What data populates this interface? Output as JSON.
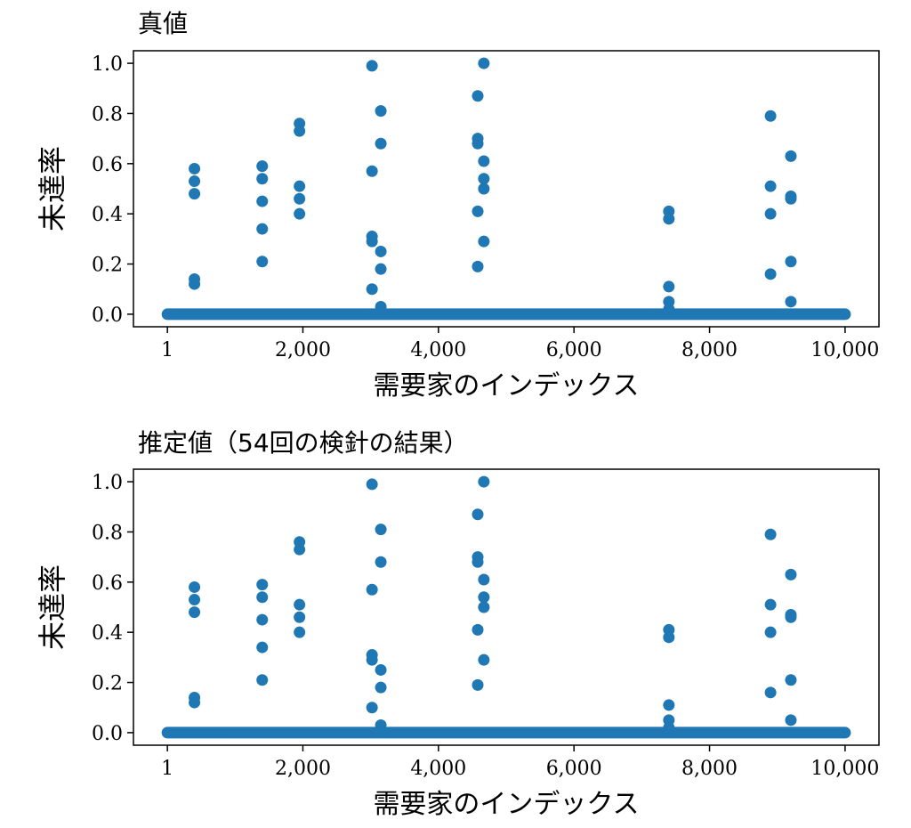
{
  "chart_data": [
    {
      "type": "scatter",
      "title": "真値",
      "xlabel": "需要家のインデックス",
      "ylabel": "未達率",
      "xlim": [
        -500,
        10500
      ],
      "ylim": [
        -0.05,
        1.05
      ],
      "x_ticks": [
        1,
        2000,
        4000,
        6000,
        8000,
        10000
      ],
      "x_tick_labels": [
        "1",
        "2,000",
        "4,000",
        "6,000",
        "8,000",
        "10,000"
      ],
      "y_ticks": [
        0.0,
        0.2,
        0.4,
        0.6,
        0.8,
        1.0
      ],
      "y_tick_labels": [
        "0.0",
        "0.2",
        "0.4",
        "0.6",
        "0.8",
        "1.0"
      ],
      "color": "#1f77b4",
      "baseline": {
        "x_start": 1,
        "x_end": 10000,
        "y": 0.0
      },
      "points": [
        [
          400,
          0.58
        ],
        [
          400,
          0.53
        ],
        [
          400,
          0.48
        ],
        [
          400,
          0.14
        ],
        [
          400,
          0.12
        ],
        [
          1400,
          0.59
        ],
        [
          1400,
          0.54
        ],
        [
          1400,
          0.45
        ],
        [
          1400,
          0.34
        ],
        [
          1400,
          0.21
        ],
        [
          1950,
          0.76
        ],
        [
          1950,
          0.73
        ],
        [
          1950,
          0.51
        ],
        [
          1950,
          0.46
        ],
        [
          1950,
          0.4
        ],
        [
          3020,
          0.99
        ],
        [
          3020,
          0.57
        ],
        [
          3020,
          0.31
        ],
        [
          3020,
          0.29
        ],
        [
          3020,
          0.1
        ],
        [
          3150,
          0.81
        ],
        [
          3150,
          0.68
        ],
        [
          3150,
          0.25
        ],
        [
          3150,
          0.18
        ],
        [
          3150,
          0.03
        ],
        [
          4580,
          0.87
        ],
        [
          4580,
          0.7
        ],
        [
          4580,
          0.68
        ],
        [
          4580,
          0.41
        ],
        [
          4580,
          0.19
        ],
        [
          4670,
          1.0
        ],
        [
          4670,
          0.61
        ],
        [
          4670,
          0.54
        ],
        [
          4670,
          0.5
        ],
        [
          4670,
          0.29
        ],
        [
          7400,
          0.41
        ],
        [
          7400,
          0.38
        ],
        [
          7400,
          0.11
        ],
        [
          7400,
          0.05
        ],
        [
          7400,
          0.02
        ],
        [
          8900,
          0.79
        ],
        [
          8900,
          0.51
        ],
        [
          8900,
          0.4
        ],
        [
          8900,
          0.16
        ],
        [
          9200,
          0.63
        ],
        [
          9200,
          0.47
        ],
        [
          9200,
          0.46
        ],
        [
          9200,
          0.21
        ],
        [
          9200,
          0.05
        ]
      ]
    },
    {
      "type": "scatter",
      "title": "推定値（54回の検針の結果）",
      "xlabel": "需要家のインデックス",
      "ylabel": "未達率",
      "xlim": [
        -500,
        10500
      ],
      "ylim": [
        -0.05,
        1.05
      ],
      "x_ticks": [
        1,
        2000,
        4000,
        6000,
        8000,
        10000
      ],
      "x_tick_labels": [
        "1",
        "2,000",
        "4,000",
        "6,000",
        "8,000",
        "10,000"
      ],
      "y_ticks": [
        0.0,
        0.2,
        0.4,
        0.6,
        0.8,
        1.0
      ],
      "y_tick_labels": [
        "0.0",
        "0.2",
        "0.4",
        "0.6",
        "0.8",
        "1.0"
      ],
      "color": "#1f77b4",
      "baseline": {
        "x_start": 1,
        "x_end": 10000,
        "y": 0.0
      },
      "points": [
        [
          400,
          0.58
        ],
        [
          400,
          0.53
        ],
        [
          400,
          0.48
        ],
        [
          400,
          0.14
        ],
        [
          400,
          0.12
        ],
        [
          1400,
          0.59
        ],
        [
          1400,
          0.54
        ],
        [
          1400,
          0.45
        ],
        [
          1400,
          0.34
        ],
        [
          1400,
          0.21
        ],
        [
          1950,
          0.76
        ],
        [
          1950,
          0.73
        ],
        [
          1950,
          0.51
        ],
        [
          1950,
          0.46
        ],
        [
          1950,
          0.4
        ],
        [
          3020,
          0.99
        ],
        [
          3020,
          0.57
        ],
        [
          3020,
          0.31
        ],
        [
          3020,
          0.29
        ],
        [
          3020,
          0.1
        ],
        [
          3150,
          0.81
        ],
        [
          3150,
          0.68
        ],
        [
          3150,
          0.25
        ],
        [
          3150,
          0.18
        ],
        [
          3150,
          0.03
        ],
        [
          4580,
          0.87
        ],
        [
          4580,
          0.7
        ],
        [
          4580,
          0.68
        ],
        [
          4580,
          0.41
        ],
        [
          4580,
          0.19
        ],
        [
          4670,
          1.0
        ],
        [
          4670,
          0.61
        ],
        [
          4670,
          0.54
        ],
        [
          4670,
          0.5
        ],
        [
          4670,
          0.29
        ],
        [
          7400,
          0.41
        ],
        [
          7400,
          0.38
        ],
        [
          7400,
          0.11
        ],
        [
          7400,
          0.05
        ],
        [
          7400,
          0.02
        ],
        [
          8900,
          0.79
        ],
        [
          8900,
          0.51
        ],
        [
          8900,
          0.4
        ],
        [
          8900,
          0.16
        ],
        [
          9200,
          0.63
        ],
        [
          9200,
          0.47
        ],
        [
          9200,
          0.46
        ],
        [
          9200,
          0.21
        ],
        [
          9200,
          0.05
        ]
      ]
    }
  ]
}
